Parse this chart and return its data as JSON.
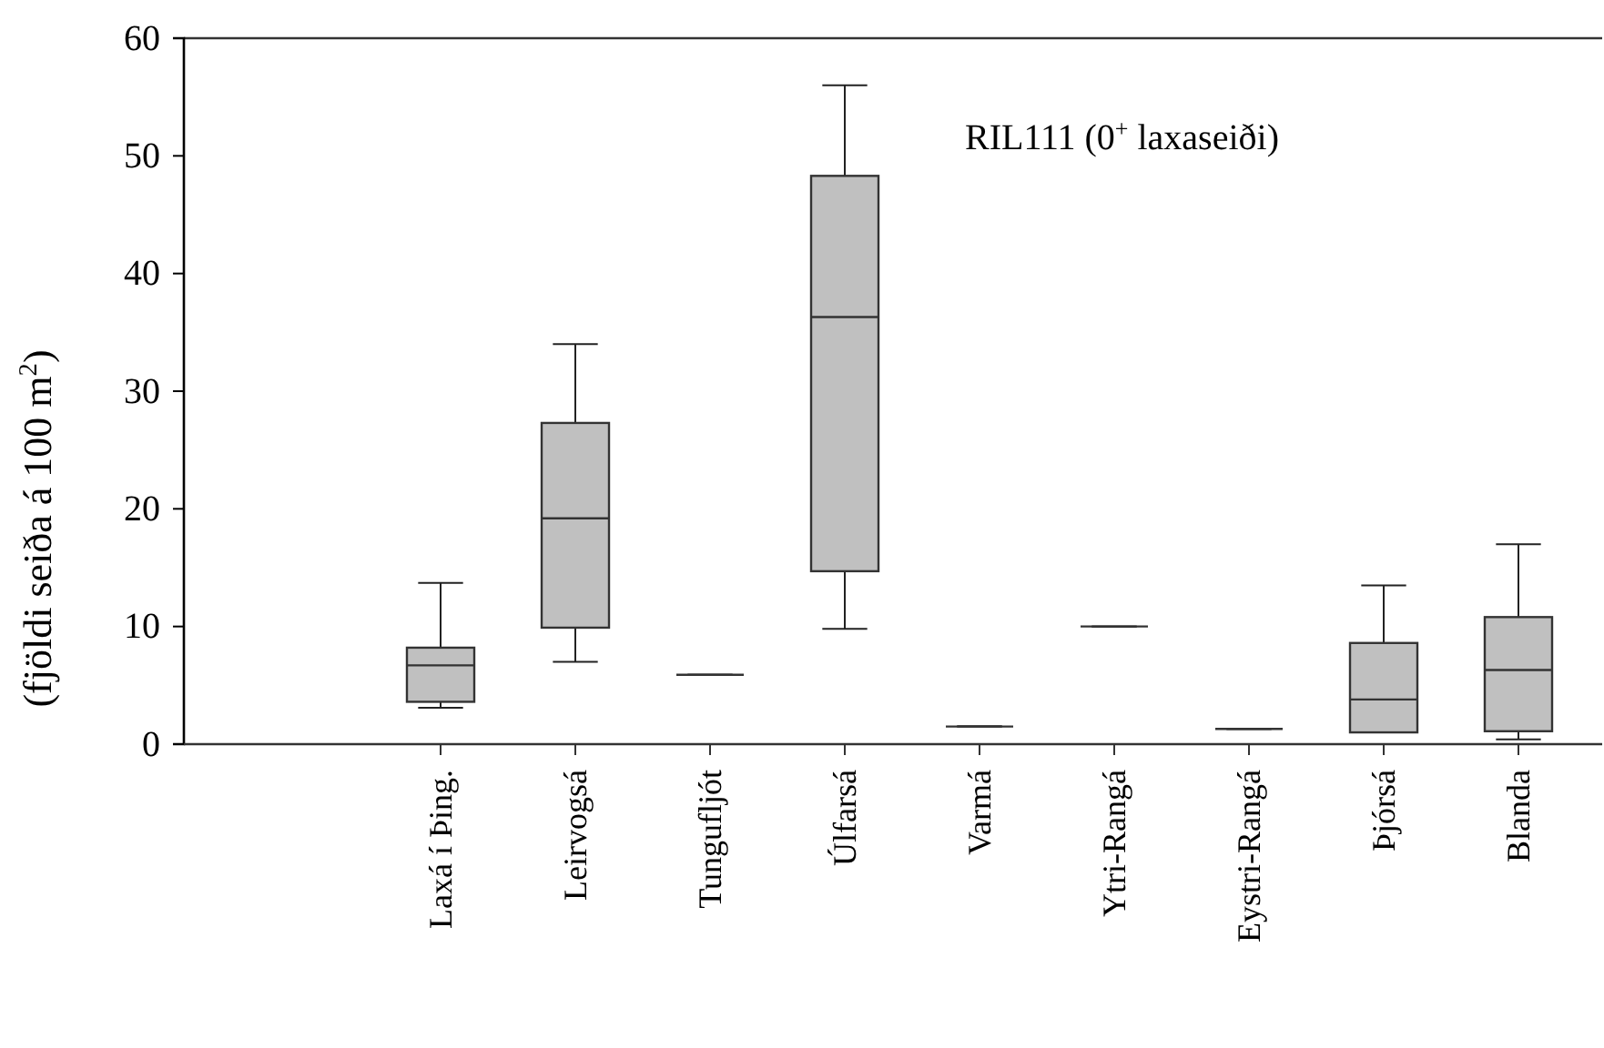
{
  "chart_data": {
    "type": "box",
    "ylabel": "(fjöldi seiða á 100 m$^{2}$)",
    "annotations": [
      "RIL111 (0$^{+}$ laxaseiði)"
    ],
    "categories": [
      "Laxá í Þing.",
      "Leirvogsá",
      "Tungufljót",
      "Úlfarsá",
      "Varmá",
      "Ytri-Rangá",
      "Eystri-Rangá",
      "Þjórsá",
      "Blanda"
    ],
    "color": "#c0c0c0",
    "boxes": [
      {
        "low": 3.1,
        "q1": 3.6,
        "median": 6.7,
        "q3": 8.2,
        "high": 13.7
      },
      {
        "low": 7.0,
        "q1": 9.9,
        "median": 19.2,
        "q3": 27.3,
        "high": 34.0
      },
      {
        "low": 5.9,
        "q1": 5.9,
        "median": 5.9,
        "q3": 5.9,
        "high": 5.9
      },
      {
        "low": 9.8,
        "q1": 14.7,
        "median": 36.3,
        "q3": 48.3,
        "high": 56.0
      },
      {
        "low": 1.5,
        "q1": 1.5,
        "median": 1.5,
        "q3": 1.5,
        "high": 1.5
      },
      {
        "low": 10.0,
        "q1": 10.0,
        "median": 10.0,
        "q3": 10.0,
        "high": 10.0
      },
      {
        "low": 1.3,
        "q1": 1.3,
        "median": 1.3,
        "q3": 1.3,
        "high": 1.3
      },
      {
        "low": 1.0,
        "q1": 1.0,
        "median": 3.8,
        "q3": 8.6,
        "high": 13.5
      },
      {
        "low": 0.4,
        "q1": 1.1,
        "median": 6.3,
        "q3": 10.8,
        "high": 17.0
      }
    ],
    "ylim": [
      0,
      60
    ],
    "yticks": [
      0,
      10,
      20,
      30,
      40,
      50,
      60
    ],
    "grid": false
  }
}
